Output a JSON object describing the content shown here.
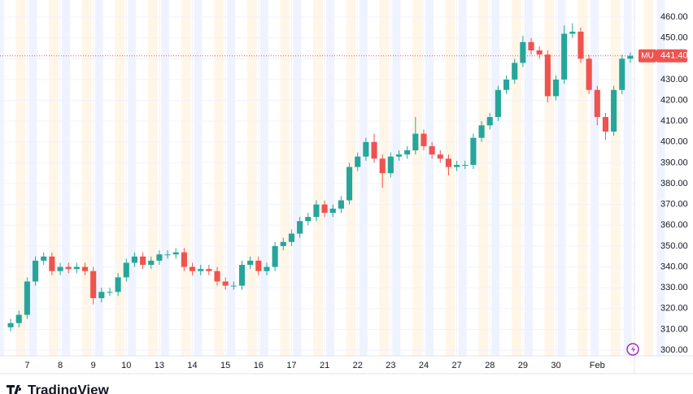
{
  "chart_data": {
    "type": "candlestick",
    "symbol": "MU",
    "categories": [
      null,
      null,
      "7",
      null,
      null,
      null,
      "8",
      null,
      null,
      null,
      "9",
      null,
      null,
      null,
      "10",
      null,
      null,
      null,
      "13",
      null,
      null,
      null,
      "14",
      null,
      null,
      null,
      "15",
      null,
      null,
      null,
      "16",
      null,
      null,
      null,
      "17",
      null,
      null,
      null,
      "21",
      null,
      null,
      null,
      "22",
      null,
      null,
      null,
      "23",
      null,
      null,
      null,
      "24",
      null,
      null,
      null,
      "27",
      null,
      null,
      null,
      "28",
      null,
      null,
      null,
      "29",
      null,
      null,
      null,
      "30",
      null,
      null,
      null,
      null,
      "Feb",
      null,
      null,
      null,
      null
    ],
    "open": [
      311,
      313,
      317,
      333,
      343,
      345,
      338,
      340,
      339,
      340,
      338,
      325,
      328,
      328,
      335,
      342,
      345,
      341,
      343,
      346,
      346,
      347,
      340,
      338,
      339,
      338,
      333,
      331,
      331,
      341,
      343,
      338,
      340,
      350,
      352,
      356,
      362,
      364,
      370,
      366,
      368,
      372,
      388,
      393,
      400,
      392,
      385,
      393,
      394,
      396,
      404,
      398,
      394,
      392,
      388,
      389,
      389,
      402,
      408,
      412,
      425,
      430,
      438,
      448,
      444,
      442,
      422,
      430,
      452,
      453,
      440,
      425,
      412,
      405,
      425,
      440
    ],
    "high": [
      315,
      319,
      335,
      345,
      347,
      347,
      342,
      342,
      342,
      342,
      340,
      330,
      330,
      337,
      344,
      347,
      347,
      345,
      348,
      348,
      349,
      349,
      342,
      341,
      341,
      340,
      335,
      333,
      343,
      345,
      345,
      342,
      352,
      354,
      358,
      364,
      366,
      372,
      372,
      370,
      374,
      390,
      395,
      402,
      404,
      394,
      395,
      396,
      398,
      412,
      406,
      400,
      396,
      394,
      391,
      391,
      404,
      410,
      414,
      427,
      432,
      440,
      451,
      450,
      446,
      444,
      432,
      456,
      457,
      455,
      442,
      427,
      414,
      427,
      442,
      443
    ],
    "low": [
      309,
      311,
      315,
      331,
      341,
      336,
      336,
      337,
      337,
      336,
      322,
      323,
      326,
      326,
      333,
      340,
      339,
      339,
      341,
      344,
      344,
      338,
      336,
      336,
      336,
      331,
      329,
      329,
      329,
      339,
      336,
      336,
      338,
      348,
      350,
      354,
      360,
      362,
      364,
      364,
      366,
      370,
      386,
      391,
      390,
      378,
      383,
      391,
      392,
      394,
      396,
      392,
      390,
      384,
      386,
      387,
      387,
      400,
      406,
      410,
      423,
      428,
      436,
      442,
      440,
      419,
      420,
      428,
      450,
      438,
      423,
      408,
      401,
      403,
      423,
      438
    ],
    "close": [
      313,
      317,
      333,
      343,
      345,
      338,
      340,
      339,
      340,
      338,
      325,
      328,
      328,
      335,
      342,
      345,
      341,
      343,
      346,
      346,
      347,
      340,
      338,
      339,
      338,
      333,
      331,
      331,
      341,
      343,
      338,
      340,
      350,
      352,
      356,
      362,
      364,
      370,
      366,
      368,
      372,
      388,
      393,
      400,
      392,
      385,
      393,
      394,
      396,
      404,
      398,
      394,
      392,
      388,
      389,
      389,
      402,
      408,
      412,
      425,
      430,
      438,
      448,
      444,
      442,
      422,
      430,
      452,
      453,
      440,
      425,
      412,
      405,
      425,
      440,
      441.4
    ],
    "up_color": "#26a69a",
    "down_color": "#ef5350",
    "last_price": {
      "value": 441.4,
      "label": "441.40"
    },
    "ylim": [
      297.3,
      464.3
    ],
    "yticks": [
      {
        "value": 300,
        "label": "300.00"
      },
      {
        "value": 310,
        "label": "310.00"
      },
      {
        "value": 320,
        "label": "320.00"
      },
      {
        "value": 330,
        "label": "330.00"
      },
      {
        "value": 340,
        "label": "340.00"
      },
      {
        "value": 350,
        "label": "350.00"
      },
      {
        "value": 360,
        "label": "360.00"
      },
      {
        "value": 370,
        "label": "370.00"
      },
      {
        "value": 380,
        "label": "380.00"
      },
      {
        "value": 390,
        "label": "390.00"
      },
      {
        "value": 400,
        "label": "400.00"
      },
      {
        "value": 410,
        "label": "410.00"
      },
      {
        "value": 420,
        "label": "420.00"
      },
      {
        "value": 430,
        "label": "430.00"
      },
      {
        "value": 440,
        "label": "440.00"
      },
      {
        "value": 450,
        "label": "450.00"
      },
      {
        "value": 460,
        "label": "460.00"
      }
    ],
    "grid": true
  },
  "footer": {
    "brand": "TradingView"
  }
}
